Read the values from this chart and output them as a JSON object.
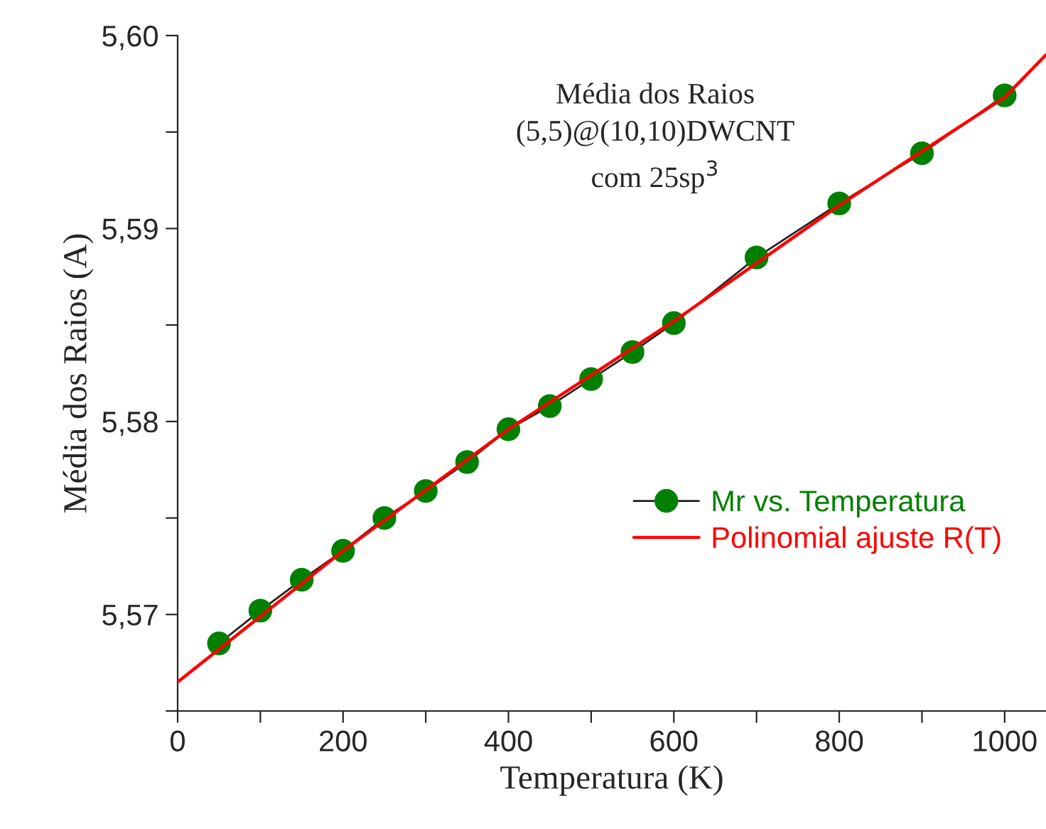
{
  "chart_data": {
    "type": "line",
    "xlabel": "Temperatura (K)",
    "ylabel": "Média dos Raios (A)",
    "annotations": [
      "Média dos Raios\n(5,5)@(10,10)DWCNT\ncom 25sp$^{3}$"
    ],
    "x": [
      50,
      100,
      150,
      200,
      250,
      300,
      350,
      400,
      450,
      500,
      550,
      600,
      700,
      800,
      900,
      1000
    ],
    "series": [
      {
        "name": "Mr vs. Temperatura",
        "color": "#008000",
        "marker": "circle",
        "values": [
          5.5685,
          5.5702,
          5.5718,
          5.5733,
          5.575,
          5.5764,
          5.5779,
          5.5796,
          5.5808,
          5.5822,
          5.5836,
          5.5851,
          5.5885,
          5.5913,
          5.5939,
          5.5969
        ]
      },
      {
        "name": "Polinomial ajuste R(T)",
        "color": "#ff0000",
        "marker": "none",
        "x": [
          0,
          200,
          400,
          600,
          800,
          1000,
          1050
        ],
        "values": [
          5.5665,
          5.5733,
          5.5796,
          5.5852,
          5.5912,
          5.5968,
          5.599
        ]
      }
    ],
    "xlim": [
      0,
      1050
    ],
    "ylim": [
      5.565,
      5.6
    ],
    "xticks": [
      0,
      {
        "value": 100,
        "label": null
      },
      200,
      {
        "value": 300,
        "label": null
      },
      400,
      {
        "value": 500,
        "label": null
      },
      600,
      {
        "value": 700,
        "label": null
      },
      800,
      {
        "value": 900,
        "label": null
      },
      1000
    ],
    "yticks": [
      {
        "value": 5.565,
        "label": null
      },
      {
        "value": 5.57,
        "label": "5,57"
      },
      {
        "value": 5.575,
        "label": null
      },
      {
        "value": 5.58,
        "label": "5,58"
      },
      {
        "value": 5.585,
        "label": null
      },
      {
        "value": 5.59,
        "label": "5,59"
      },
      {
        "value": 5.595,
        "label": null
      },
      {
        "value": 5.6,
        "label": "5,60"
      }
    ],
    "grid": false,
    "legend": "right"
  }
}
